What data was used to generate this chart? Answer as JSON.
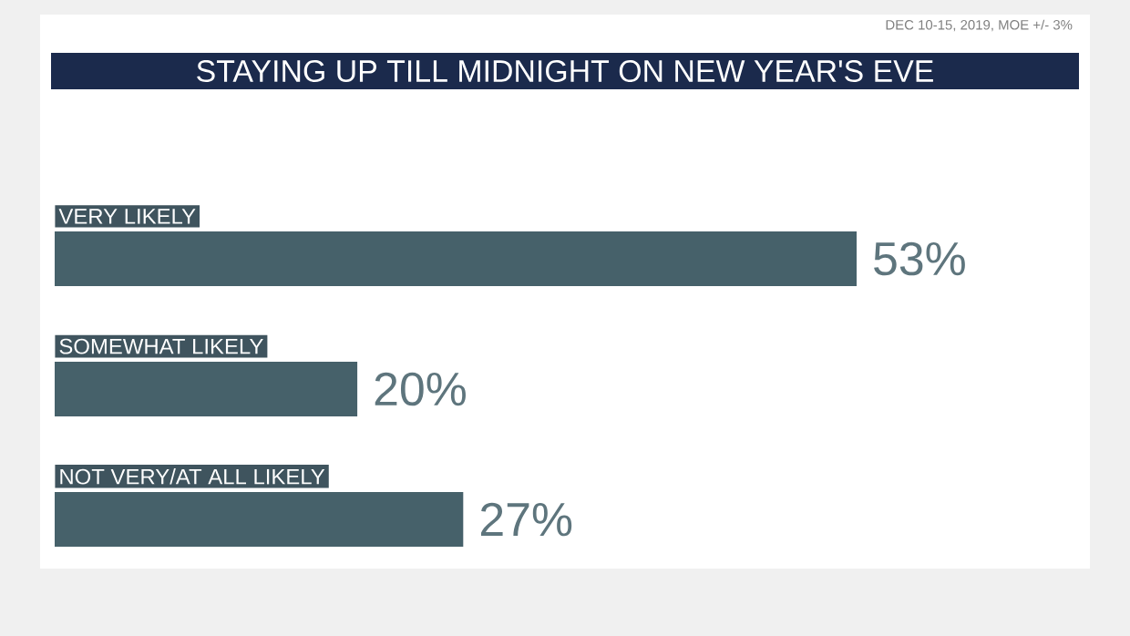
{
  "chart_data": {
    "type": "bar",
    "orientation": "horizontal",
    "title": "STAYING UP TILL MIDNIGHT ON NEW YEAR'S EVE",
    "annotations": [
      "DEC 10-15, 2019, MOE +/- 3%"
    ],
    "categories": [
      "VERY LIKELY",
      "SOMEWHAT LIKELY",
      "NOT VERY/AT ALL LIKELY"
    ],
    "values": [
      53,
      20,
      27
    ],
    "value_labels": [
      "53%",
      "20%",
      "27%"
    ],
    "color": "#46616a"
  }
}
